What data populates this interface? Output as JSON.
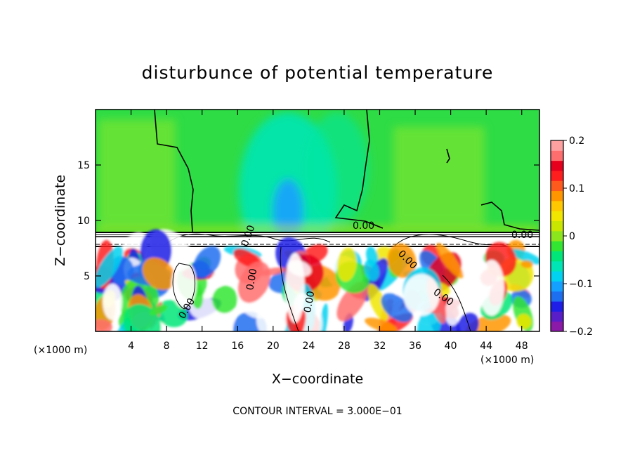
{
  "chart_data": {
    "type": "heatmap",
    "title": "disturbunce of potential temperature",
    "xlabel": "X−coordinate",
    "ylabel": "Z−coordinate",
    "x_unit": "(×1000 m)",
    "x_unit_right": "(×1000 m)",
    "xlim": [
      0,
      50
    ],
    "ylim": [
      0,
      20
    ],
    "x_ticks": [
      4,
      8,
      12,
      16,
      20,
      24,
      28,
      32,
      36,
      40,
      44,
      48
    ],
    "y_ticks": [
      5,
      10,
      15
    ],
    "colorbar": {
      "range": [
        -0.2,
        0.2
      ],
      "ticks": [
        0.2,
        0.1,
        0,
        -0.1,
        -0.2
      ],
      "tick_labels": [
        "0.2",
        "0.1",
        "0",
        "−0.1",
        "−0.2"
      ],
      "colors": [
        "#8b1aa8",
        "#5a1ec8",
        "#1e1ee6",
        "#1e6ef0",
        "#14a0ff",
        "#00d2f0",
        "#00e6b4",
        "#00e678",
        "#32e632",
        "#8ce61e",
        "#c8e600",
        "#f0e600",
        "#ffc800",
        "#ff9600",
        "#ff5a1e",
        "#ff1e1e",
        "#e6001e",
        "#ff6e6e",
        "#ffa0a0"
      ]
    },
    "contour_labels": [
      "0.00",
      "0.00",
      "0.00",
      "0.00",
      "0.00",
      "0.00",
      "0.00",
      "0.00",
      "0.00",
      "0.00"
    ],
    "contour_interval_text": "CONTOUR INTERVAL = 3.000E−01",
    "grid": false,
    "legend": "right"
  }
}
